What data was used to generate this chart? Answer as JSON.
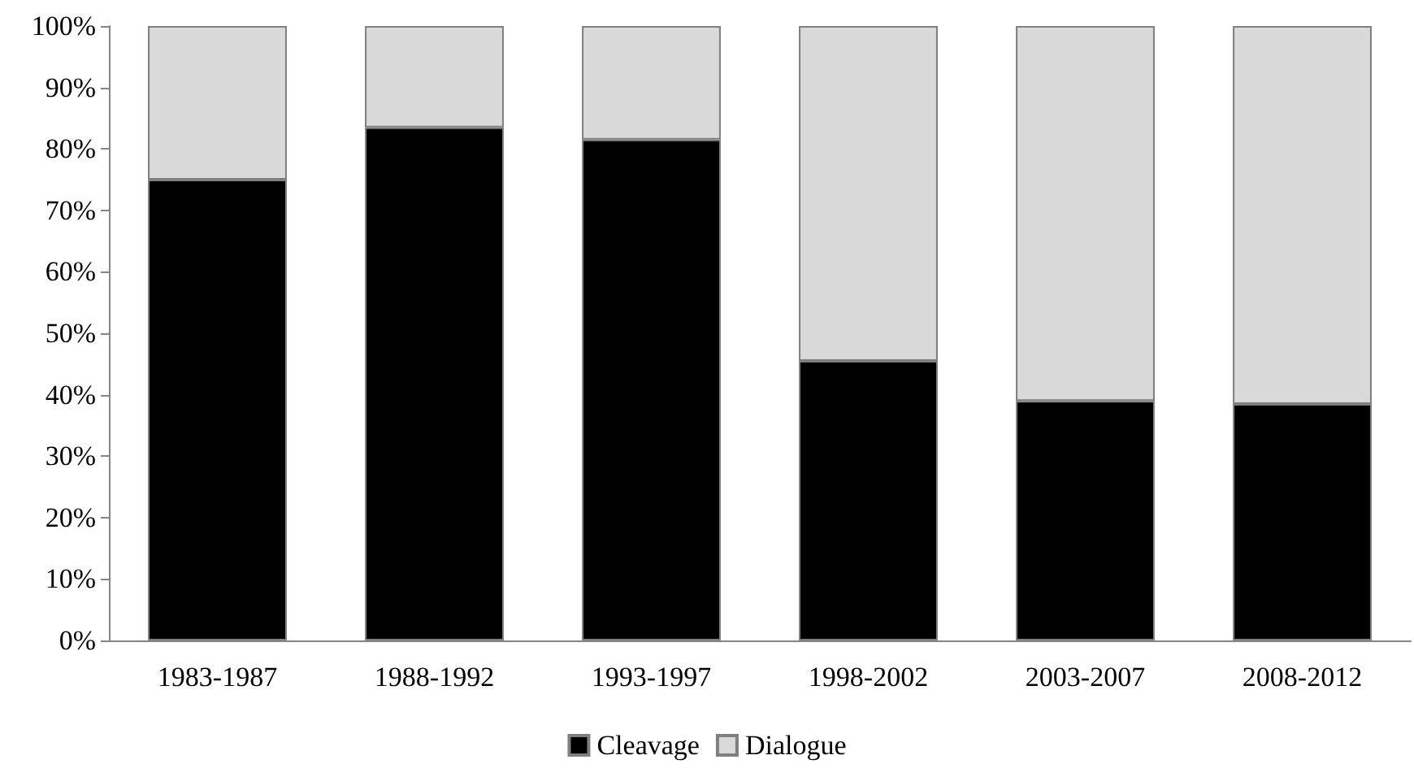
{
  "chart_data": {
    "type": "bar",
    "stacked": true,
    "categories": [
      "1983-1987",
      "1988-1992",
      "1993-1997",
      "1998-2002",
      "2003-2007",
      "2008-2012"
    ],
    "series": [
      {
        "name": "Cleavage",
        "color": "#000000",
        "values": [
          75,
          83.5,
          81.5,
          45.5,
          39,
          38.5
        ]
      },
      {
        "name": "Dialogue",
        "color": "#d9d9d9",
        "values": [
          25,
          16.5,
          18.5,
          54.5,
          61,
          61.5
        ]
      }
    ],
    "ylim": [
      0,
      100
    ],
    "yticks": [
      {
        "value": 0,
        "label": "0%"
      },
      {
        "value": 10,
        "label": "10%"
      },
      {
        "value": 20,
        "label": "20%"
      },
      {
        "value": 30,
        "label": "30%"
      },
      {
        "value": 40,
        "label": "40%"
      },
      {
        "value": 50,
        "label": "50%"
      },
      {
        "value": 60,
        "label": "60%"
      },
      {
        "value": 70,
        "label": "70%"
      },
      {
        "value": 80,
        "label": "80%"
      },
      {
        "value": 90,
        "label": "90%"
      },
      {
        "value": 100,
        "label": "100%"
      }
    ],
    "grid": false,
    "legend": "bottom"
  }
}
